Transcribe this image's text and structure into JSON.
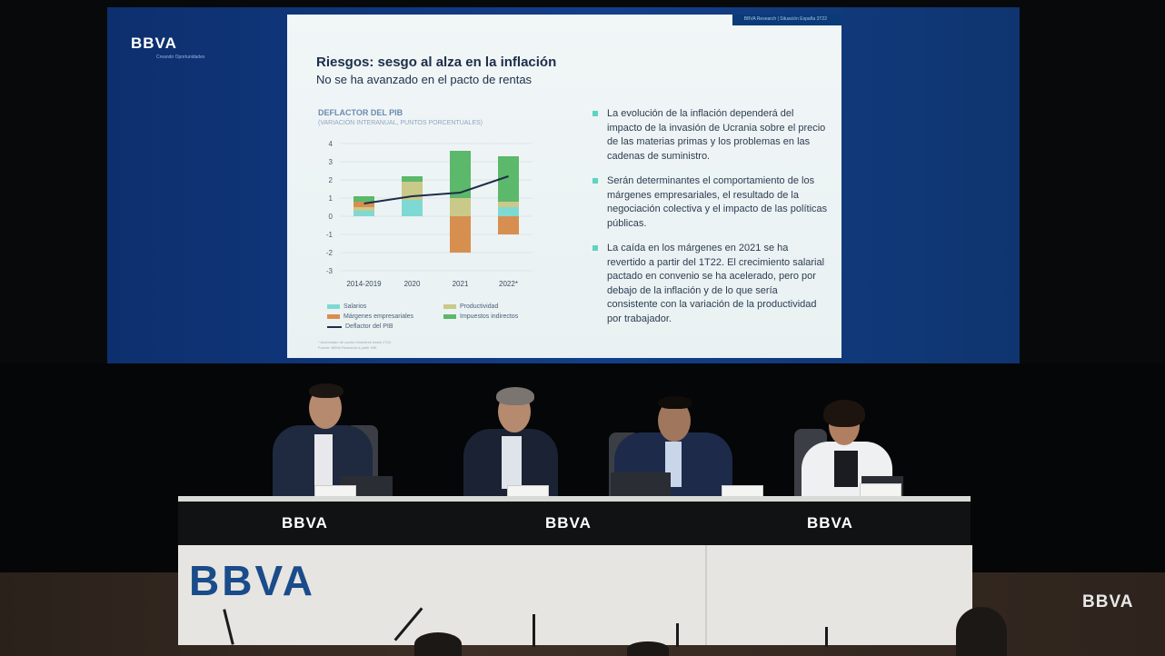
{
  "screen": {
    "logo": "BBVA",
    "logo_sub": "Creando Oportunidades"
  },
  "slide": {
    "corner_text": "BBVA Research | Situación España 3T22",
    "title": "Riesgos: sesgo al alza en la inflación",
    "subtitle": "No se ha avanzado en el pacto de rentas",
    "chart_title": "DEFLACTOR DEL PIB",
    "chart_subtitle": "(VARIACIÓN INTERANUAL, PUNTOS PORCENTUALES)",
    "footnote_1": "* Acumulado de cuatro trimestres hasta 1T22.",
    "footnote_2": "Fuente: BBVA Research a partir INE.",
    "bullets": [
      {
        "parts": [
          "La evolución de la inflación dependerá del impacto de la invasión de Ucrania sobre el precio de las materias primas y los problemas en las cadenas de suministro."
        ]
      },
      {
        "parts": [
          "Serán determinantes el comportamiento de los márgenes empresariales, el resultado de la negociación colectiva y el impacto de las políticas públicas."
        ]
      },
      {
        "parts": [
          "La caída en los márgenes en 2021 se ha revertido a partir del 1T22. El crecimiento salarial pactado en convenio se ha acelerado, pero por debajo de la inflación y de lo que sería consistente con la variación de la productividad por trabajador."
        ]
      }
    ]
  },
  "chart_data": {
    "type": "bar",
    "title": "DEFLACTOR DEL PIB",
    "subtitle": "(VARIACIÓN INTERANUAL, PUNTOS PORCENTUALES)",
    "categories": [
      "2014-2019",
      "2020",
      "2021",
      "2022*"
    ],
    "ylim": [
      -3,
      4
    ],
    "yticks": [
      4,
      3,
      2,
      1,
      0,
      -1,
      -2,
      -3
    ],
    "grid": true,
    "stacked": true,
    "series": [
      {
        "name": "Salarios",
        "color": "#7fd9d3",
        "values": [
          0.3,
          0.9,
          0.0,
          0.5
        ]
      },
      {
        "name": "Productividad",
        "color": "#c9c98a",
        "values": [
          0.2,
          1.0,
          1.0,
          0.3
        ]
      },
      {
        "name": "Márgenes empresariales",
        "color": "#d78f4f",
        "values": [
          0.3,
          0.0,
          -2.0,
          -1.0
        ]
      },
      {
        "name": "Impuestos indirectos",
        "color": "#5cb86a",
        "values": [
          0.3,
          0.3,
          2.6,
          2.5
        ]
      }
    ],
    "line": {
      "name": "Deflactor del PIB",
      "color": "#1e2d48",
      "values": [
        0.7,
        1.1,
        1.3,
        2.2
      ]
    },
    "legend_position": "bottom-left"
  },
  "legend": {
    "salarios": "Salarios",
    "productividad": "Productividad",
    "margenes": "Márgenes empresariales",
    "impuestos": "Impuestos indirectos",
    "deflactor": "Deflactor del PIB"
  },
  "table": {
    "band_logo_1": "BBVA",
    "band_logo_2": "BBVA",
    "band_logo_3": "BBVA",
    "front_logo": "BBVA"
  },
  "watermark": "BBVA"
}
